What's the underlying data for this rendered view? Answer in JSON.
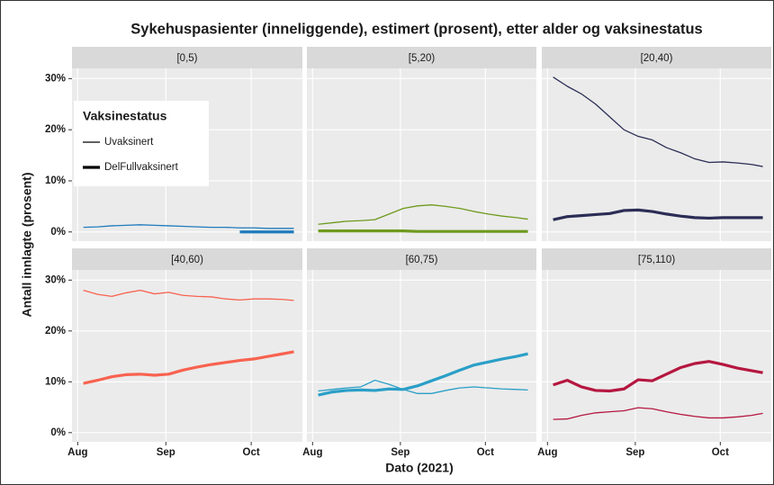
{
  "title": "Sykehuspasienter (inneliggende), estimert (prosent), etter alder og vaksinestatus",
  "x_label": "Dato (2021)",
  "y_label": "Antall innlagte (prosent)",
  "legend_title": "Vaksinestatus",
  "xlim": [
    -1,
    80
  ],
  "xticks": [
    {
      "value": 1,
      "label": "Aug"
    },
    {
      "value": 32,
      "label": "Sep"
    },
    {
      "value": 62,
      "label": "Oct"
    }
  ],
  "ylim": [
    -1.8,
    32
  ],
  "yticks": [
    {
      "value": 0,
      "label": "0%"
    },
    {
      "value": 10,
      "label": "10%"
    },
    {
      "value": 20,
      "label": "20%"
    },
    {
      "value": 30,
      "label": "30%"
    }
  ],
  "grid": true,
  "chart_data": [
    {
      "type": "line",
      "title": "[0,5)",
      "x": [
        3,
        8,
        13,
        18,
        23,
        28,
        33,
        38,
        43,
        48,
        53,
        58,
        63,
        68,
        73,
        77
      ],
      "series": [
        {
          "name": "Uvaksinert",
          "color": "#1f7bbd",
          "values": [
            0.9,
            1.0,
            1.2,
            1.3,
            1.4,
            1.3,
            1.2,
            1.1,
            1.0,
            0.9,
            0.9,
            0.8,
            0.8,
            0.7,
            0.7,
            0.7
          ]
        },
        {
          "name": "DelFullvaksinert",
          "color": "#1f7bbd",
          "values": [
            null,
            null,
            null,
            null,
            null,
            null,
            null,
            null,
            null,
            null,
            null,
            0,
            0,
            0,
            0,
            0
          ]
        }
      ]
    },
    {
      "type": "line",
      "title": "[5,20)",
      "x": [
        3,
        8,
        13,
        18,
        23,
        28,
        33,
        38,
        43,
        48,
        53,
        58,
        63,
        68,
        73,
        77
      ],
      "series": [
        {
          "name": "Uvaksinert",
          "color": "#6e9a1e",
          "values": [
            1.5,
            1.8,
            2.1,
            2.2,
            2.4,
            3.5,
            4.6,
            5.1,
            5.3,
            5.0,
            4.6,
            4.0,
            3.5,
            3.1,
            2.8,
            2.5
          ]
        },
        {
          "name": "DelFullvaksinert",
          "color": "#6e9a1e",
          "values": [
            0.2,
            0.2,
            0.2,
            0.2,
            0.2,
            0.2,
            0.2,
            0.1,
            0.1,
            0.1,
            0.1,
            0.1,
            0.1,
            0.1,
            0.1,
            0.1
          ]
        }
      ]
    },
    {
      "type": "line",
      "title": "[20,40)",
      "x": [
        3,
        8,
        13,
        18,
        23,
        28,
        33,
        38,
        43,
        48,
        53,
        58,
        63,
        68,
        73,
        77
      ],
      "series": [
        {
          "name": "Uvaksinert",
          "color": "#2b2d55",
          "values": [
            30.3,
            28.5,
            27,
            25,
            22.5,
            20,
            18.7,
            18,
            16.5,
            15.5,
            14.3,
            13.6,
            13.7,
            13.5,
            13.2,
            12.8
          ]
        },
        {
          "name": "DelFullvaksinert",
          "color": "#2b2d55",
          "values": [
            2.4,
            3.0,
            3.2,
            3.4,
            3.6,
            4.2,
            4.3,
            4.0,
            3.5,
            3.1,
            2.8,
            2.7,
            2.8,
            2.8,
            2.8,
            2.8
          ]
        }
      ]
    },
    {
      "type": "line",
      "title": "[40,60)",
      "x": [
        3,
        8,
        13,
        18,
        23,
        28,
        33,
        38,
        43,
        48,
        53,
        58,
        63,
        68,
        73,
        77
      ],
      "series": [
        {
          "name": "Uvaksinert",
          "color": "#f8624f",
          "values": [
            28,
            27.2,
            26.8,
            27.5,
            28,
            27.3,
            27.6,
            27,
            26.8,
            26.7,
            26.3,
            26.1,
            26.3,
            26.3,
            26.2,
            26.0
          ]
        },
        {
          "name": "DelFullvaksinert",
          "color": "#f8624f",
          "values": [
            9.7,
            10.3,
            11.0,
            11.4,
            11.5,
            11.3,
            11.5,
            12.3,
            12.9,
            13.4,
            13.8,
            14.2,
            14.5,
            15.0,
            15.5,
            15.9
          ]
        }
      ]
    },
    {
      "type": "line",
      "title": "[60,75)",
      "x": [
        3,
        8,
        13,
        18,
        23,
        28,
        33,
        38,
        43,
        48,
        53,
        58,
        63,
        68,
        73,
        77
      ],
      "series": [
        {
          "name": "Uvaksinert",
          "color": "#2a9fc7",
          "values": [
            8.2,
            8.5,
            8.8,
            9.0,
            10.3,
            9.5,
            8.5,
            7.7,
            7.7,
            8.3,
            8.8,
            9.0,
            8.8,
            8.6,
            8.5,
            8.4
          ]
        },
        {
          "name": "DelFullvaksinert",
          "color": "#2a9fc7",
          "values": [
            7.4,
            8.0,
            8.3,
            8.4,
            8.3,
            8.6,
            8.5,
            9.2,
            10.2,
            11.2,
            12.3,
            13.3,
            13.9,
            14.5,
            15.0,
            15.5
          ]
        }
      ]
    },
    {
      "type": "line",
      "title": "[75,110)",
      "x": [
        3,
        8,
        13,
        18,
        23,
        28,
        33,
        38,
        43,
        48,
        53,
        58,
        63,
        68,
        73,
        77
      ],
      "series": [
        {
          "name": "Uvaksinert",
          "color": "#b5173f",
          "values": [
            2.6,
            2.7,
            3.4,
            3.9,
            4.1,
            4.3,
            4.9,
            4.7,
            4.1,
            3.6,
            3.2,
            2.9,
            2.9,
            3.1,
            3.4,
            3.8
          ]
        },
        {
          "name": "DelFullvaksinert",
          "color": "#b5173f",
          "values": [
            9.4,
            10.3,
            9.0,
            8.3,
            8.2,
            8.6,
            10.4,
            10.2,
            11.5,
            12.8,
            13.6,
            14.0,
            13.4,
            12.7,
            12.2,
            11.8
          ]
        }
      ]
    }
  ]
}
